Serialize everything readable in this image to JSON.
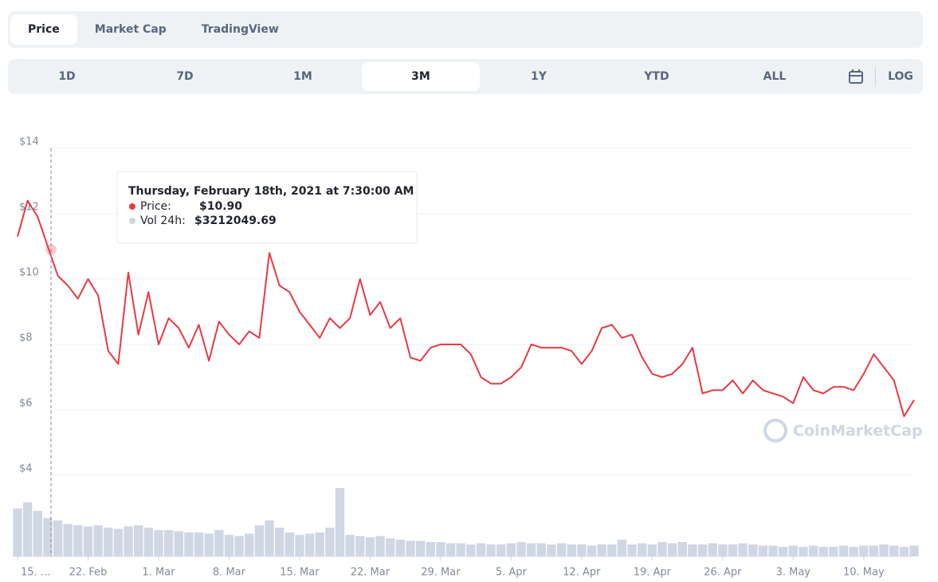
{
  "tabs": [
    "Price",
    "Market Cap",
    "TradingView"
  ],
  "active_tab": "Price",
  "ranges": [
    "1D",
    "7D",
    "1M",
    "3M",
    "1Y",
    "YTD",
    "ALL"
  ],
  "active_range": "3M",
  "log_button": "LOG",
  "watermark": "CoinMarketCap",
  "tooltip": {
    "date": "Thursday, February 18th, 2021 at 7:30:00 AM",
    "price_label": "Price:",
    "price": {
      "value": 10.9,
      "label": "$10.90"
    },
    "volume_label": "Vol 24h:",
    "volume": {
      "value": 3212049.69,
      "label": "$3212049.69"
    }
  },
  "chart_data": {
    "type": "line",
    "x": [
      "2021-02-15",
      "2021-02-16",
      "2021-02-17",
      "2021-02-18",
      "2021-02-19",
      "2021-02-20",
      "2021-02-21",
      "2021-02-22",
      "2021-02-23",
      "2021-02-24",
      "2021-02-25",
      "2021-02-26",
      "2021-02-27",
      "2021-02-28",
      "2021-03-01",
      "2021-03-02",
      "2021-03-03",
      "2021-03-04",
      "2021-03-05",
      "2021-03-06",
      "2021-03-07",
      "2021-03-08",
      "2021-03-09",
      "2021-03-10",
      "2021-03-11",
      "2021-03-12",
      "2021-03-13",
      "2021-03-14",
      "2021-03-15",
      "2021-03-16",
      "2021-03-17",
      "2021-03-18",
      "2021-03-19",
      "2021-03-20",
      "2021-03-21",
      "2021-03-22",
      "2021-03-23",
      "2021-03-24",
      "2021-03-25",
      "2021-03-26",
      "2021-03-27",
      "2021-03-28",
      "2021-03-29",
      "2021-03-30",
      "2021-03-31",
      "2021-04-01",
      "2021-04-02",
      "2021-04-03",
      "2021-04-04",
      "2021-04-05",
      "2021-04-06",
      "2021-04-07",
      "2021-04-08",
      "2021-04-09",
      "2021-04-10",
      "2021-04-11",
      "2021-04-12",
      "2021-04-13",
      "2021-04-14",
      "2021-04-15",
      "2021-04-16",
      "2021-04-17",
      "2021-04-18",
      "2021-04-19",
      "2021-04-20",
      "2021-04-21",
      "2021-04-22",
      "2021-04-23",
      "2021-04-24",
      "2021-04-25",
      "2021-04-26",
      "2021-04-27",
      "2021-04-28",
      "2021-04-29",
      "2021-04-30",
      "2021-05-01",
      "2021-05-02",
      "2021-05-03",
      "2021-05-04",
      "2021-05-05",
      "2021-05-06",
      "2021-05-07",
      "2021-05-08",
      "2021-05-09",
      "2021-05-10",
      "2021-05-11",
      "2021-05-12",
      "2021-05-13",
      "2021-05-14",
      "2021-05-15"
    ],
    "series": [
      {
        "name": "Price",
        "color": "#ea3943",
        "values": [
          11.3,
          12.4,
          11.9,
          11.0,
          10.1,
          9.8,
          9.4,
          10.0,
          9.5,
          7.8,
          7.4,
          10.2,
          8.3,
          9.6,
          8.0,
          8.8,
          8.5,
          7.9,
          8.6,
          7.5,
          8.7,
          8.3,
          8.0,
          8.4,
          8.2,
          10.8,
          9.8,
          9.6,
          9.0,
          8.6,
          8.2,
          8.8,
          8.5,
          8.8,
          10.0,
          8.9,
          9.3,
          8.5,
          8.8,
          7.6,
          7.5,
          7.9,
          8.0,
          8.0,
          8.0,
          7.7,
          7.0,
          6.8,
          6.8,
          7.0,
          7.3,
          8.0,
          7.9,
          7.9,
          7.9,
          7.8,
          7.4,
          7.8,
          8.5,
          8.6,
          8.2,
          8.3,
          7.6,
          7.1,
          7.0,
          7.1,
          7.4,
          7.9,
          6.5,
          6.6,
          6.6,
          6.9,
          6.5,
          6.9,
          6.6,
          6.5,
          6.4,
          6.2,
          7.0,
          6.6,
          6.5,
          6.7,
          6.7,
          6.6,
          7.1,
          7.7,
          7.3,
          6.9,
          5.8,
          6.3
        ]
      },
      {
        "name": "Vol 24h",
        "color": "#cfd6e4",
        "axis": "y2",
        "values": [
          4000000,
          4500000,
          3800000,
          3200000,
          3000000,
          2700000,
          2600000,
          2500000,
          2600000,
          2400000,
          2300000,
          2500000,
          2600000,
          2400000,
          2200000,
          2200000,
          2100000,
          2000000,
          2000000,
          1900000,
          2200000,
          1800000,
          1700000,
          1900000,
          2600000,
          3000000,
          2400000,
          2000000,
          1800000,
          1900000,
          2000000,
          2400000,
          5700000,
          1800000,
          1700000,
          1600000,
          1700000,
          1500000,
          1400000,
          1300000,
          1300000,
          1200000,
          1200000,
          1100000,
          1100000,
          1000000,
          1100000,
          1000000,
          1000000,
          1100000,
          1200000,
          1100000,
          1100000,
          1000000,
          1100000,
          1000000,
          1000000,
          900000,
          1000000,
          1000000,
          1400000,
          1000000,
          1100000,
          1000000,
          1200000,
          1100000,
          1200000,
          1000000,
          1000000,
          1100000,
          1000000,
          1000000,
          1100000,
          1000000,
          900000,
          900000,
          800000,
          900000,
          800000,
          900000,
          800000,
          800000,
          900000,
          800000,
          900000,
          900000,
          1000000,
          900000,
          800000,
          900000
        ]
      }
    ],
    "xlim": [
      "2021-02-15",
      "2021-05-15"
    ],
    "xticks": [
      {
        "value": "2021-02-15",
        "label": "15. …"
      },
      {
        "value": "2021-02-22",
        "label": "22. Feb"
      },
      {
        "value": "2021-03-01",
        "label": "1. Mar"
      },
      {
        "value": "2021-03-08",
        "label": "8. Mar"
      },
      {
        "value": "2021-03-15",
        "label": "15. Mar"
      },
      {
        "value": "2021-03-22",
        "label": "22. Mar"
      },
      {
        "value": "2021-03-29",
        "label": "29. Mar"
      },
      {
        "value": "2021-04-05",
        "label": "5. Apr"
      },
      {
        "value": "2021-04-12",
        "label": "12. Apr"
      },
      {
        "value": "2021-04-19",
        "label": "19. Apr"
      },
      {
        "value": "2021-04-26",
        "label": "26. Apr"
      },
      {
        "value": "2021-05-03",
        "label": "3. May"
      },
      {
        "value": "2021-05-10",
        "label": "10. May"
      }
    ],
    "ylim": [
      4,
      14
    ],
    "yticks": [
      {
        "value": 4,
        "label": "$4"
      },
      {
        "value": 6,
        "label": "$6"
      },
      {
        "value": 8,
        "label": "$8"
      },
      {
        "value": 10,
        "label": "$10"
      },
      {
        "value": 12,
        "label": "$12"
      },
      {
        "value": 14,
        "label": "$14"
      }
    ],
    "y2lim": [
      0,
      6500000
    ],
    "grid": true
  }
}
